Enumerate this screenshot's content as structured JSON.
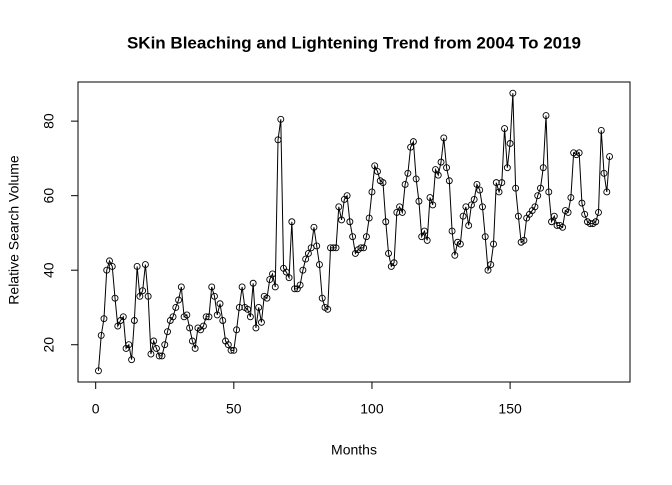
{
  "chart_data": {
    "type": "line",
    "title": "SKin Bleaching and Lightening Trend from 2004 To 2019",
    "x_label": "Months",
    "y_label": "Relative Search Volume",
    "color": "#000000",
    "markers": true,
    "xlim": [
      -6.4,
      193.4
    ],
    "ylim": [
      10,
      90.5
    ],
    "xticks": [
      0,
      50,
      100,
      150
    ],
    "yticks": [
      20,
      40,
      60,
      80
    ],
    "x": [
      1,
      2,
      3,
      4,
      5,
      6,
      7,
      8,
      9,
      10,
      11,
      12,
      13,
      14,
      15,
      16,
      17,
      18,
      19,
      20,
      21,
      22,
      23,
      24,
      25,
      26,
      27,
      28,
      29,
      30,
      31,
      32,
      33,
      34,
      35,
      36,
      37,
      38,
      39,
      40,
      41,
      42,
      43,
      44,
      45,
      46,
      47,
      48,
      49,
      50,
      51,
      52,
      53,
      54,
      55,
      56,
      57,
      58,
      59,
      60,
      61,
      62,
      63,
      64,
      65,
      66,
      67,
      68,
      69,
      70,
      71,
      72,
      73,
      74,
      75,
      76,
      77,
      78,
      79,
      80,
      81,
      82,
      83,
      84,
      85,
      86,
      87,
      88,
      89,
      90,
      91,
      92,
      93,
      94,
      95,
      96,
      97,
      98,
      99,
      100,
      101,
      102,
      103,
      104,
      105,
      106,
      107,
      108,
      109,
      110,
      111,
      112,
      113,
      114,
      115,
      116,
      117,
      118,
      119,
      120,
      121,
      122,
      123,
      124,
      125,
      126,
      127,
      128,
      129,
      130,
      131,
      132,
      133,
      134,
      135,
      136,
      137,
      138,
      139,
      140,
      141,
      142,
      143,
      144,
      145,
      146,
      147,
      148,
      149,
      150,
      151,
      152,
      153,
      154,
      155,
      156,
      157,
      158,
      159,
      160,
      161,
      162,
      163,
      164,
      165,
      166,
      167,
      168,
      169,
      170,
      171,
      172,
      173,
      174,
      175,
      176,
      177,
      178,
      179,
      180,
      181,
      182,
      183,
      184,
      185,
      186
    ],
    "values": [
      13,
      22.5,
      27,
      40,
      42.5,
      41,
      32.5,
      25,
      26.5,
      27.5,
      19,
      20,
      16,
      26.5,
      41,
      33,
      34.5,
      41.5,
      33,
      17.5,
      21,
      19,
      17,
      17,
      20,
      23.5,
      26.5,
      27.5,
      30,
      32,
      35.5,
      27.5,
      28,
      24.5,
      21,
      19,
      24.5,
      24,
      25,
      27.5,
      27.5,
      35.5,
      33,
      28,
      31,
      26.5,
      21,
      20,
      18.5,
      18.5,
      24,
      30,
      35.5,
      30,
      29.5,
      27.5,
      36.5,
      24.5,
      30,
      26,
      33,
      32.5,
      37.5,
      39,
      35.5,
      75,
      80.5,
      40.5,
      39.5,
      38,
      53,
      35,
      35,
      36,
      40,
      43,
      44.5,
      46,
      51.5,
      46.5,
      41.5,
      32.5,
      30,
      29.5,
      46,
      46,
      46,
      57,
      53.5,
      59,
      60,
      53,
      49,
      44.5,
      45.5,
      46,
      46,
      49,
      54,
      61,
      68,
      66.5,
      64,
      63.5,
      53,
      44.5,
      41,
      42,
      55.5,
      57,
      55.5,
      63,
      66,
      73,
      74.5,
      64.5,
      58.5,
      49,
      50.5,
      48,
      59.5,
      57.5,
      67,
      65.5,
      69,
      75.5,
      67.5,
      64,
      50.5,
      44,
      47.5,
      47,
      54.5,
      57,
      52,
      57.5,
      59,
      63,
      61.5,
      57,
      49,
      40,
      41.5,
      47,
      63.5,
      61,
      63.5,
      78,
      67.5,
      74,
      87.5,
      62,
      54.5,
      47.5,
      48,
      54,
      55,
      56,
      57,
      60,
      62,
      67.5,
      81.5,
      61,
      53,
      54.5,
      52,
      52,
      51.5,
      56,
      55.5,
      59.5,
      71.5,
      71,
      71.5,
      58,
      55,
      53,
      52.5,
      52.5,
      53,
      55.5,
      77.5,
      66,
      61,
      70.5
    ]
  }
}
